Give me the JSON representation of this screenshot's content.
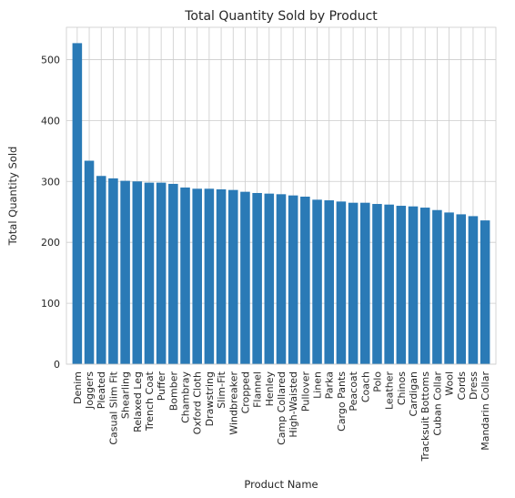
{
  "chart_data": {
    "type": "bar",
    "title": "Total Quantity Sold by Product",
    "xlabel": "Product Name",
    "ylabel": "Total Quantity Sold",
    "ylim": [
      0,
      553
    ],
    "yticks": [
      0,
      100,
      200,
      300,
      400,
      500
    ],
    "grid": true,
    "bar_color": "#2a7ab6",
    "grid_color": "#cccccc",
    "categories": [
      "Denim",
      "Joggers",
      "Pleated",
      "Casual Slim Fit",
      "Shearling",
      "Relaxed Leg",
      "Trench Coat",
      "Puffer",
      "Bomber",
      "Chambray",
      "Oxford Cloth",
      "Drawstring",
      "Slim-Fit",
      "Windbreaker",
      "Cropped",
      "Flannel",
      "Henley",
      "Camp Collared",
      "High-Waisted",
      "Pullover",
      "Linen",
      "Parka",
      "Cargo Pants",
      "Peacoat",
      "Coach",
      "Polo",
      "Leather",
      "Chinos",
      "Cardigan",
      "Tracksuit Bottoms",
      "Cuban Collar",
      "Wool",
      "Cords",
      "Dress",
      "Mandarin Collar"
    ],
    "values": [
      527,
      334,
      309,
      305,
      301,
      300,
      298,
      298,
      296,
      290,
      288,
      288,
      287,
      286,
      283,
      281,
      280,
      279,
      277,
      275,
      270,
      269,
      267,
      265,
      265,
      263,
      262,
      260,
      259,
      257,
      253,
      249,
      246,
      243,
      236
    ]
  }
}
